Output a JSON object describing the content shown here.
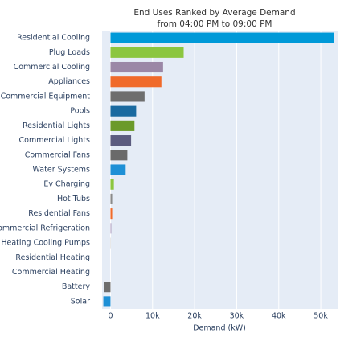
{
  "chart_data": {
    "type": "barh",
    "title": "End Uses Ranked by Average Demand",
    "subtitle": "from 04:00 PM to 09:00 PM",
    "x_label": "Demand (kW)",
    "categories": [
      "Residential Cooling",
      "Plug Loads",
      "Commercial Cooling",
      "Appliances",
      "Commercial Equipment",
      "Pools",
      "Residential Lights",
      "Commercial Lights",
      "Commercial Fans",
      "Water Systems",
      "Ev Charging",
      "Hot Tubs",
      "Residential Fans",
      "Commercial Refrigeration",
      "Heating Cooling Pumps",
      "Residential Heating",
      "Commercial Heating",
      "Battery",
      "Solar"
    ],
    "values": [
      53200,
      17400,
      12500,
      12100,
      8100,
      6100,
      5700,
      4900,
      4000,
      3600,
      800,
      400,
      400,
      200,
      50,
      0,
      0,
      -1500,
      -1700
    ],
    "colors": [
      "#0099d8",
      "#8cc63f",
      "#9b87a6",
      "#f06a2a",
      "#6e6e6e",
      "#1a6aa0",
      "#6b9a2a",
      "#5c5c7f",
      "#6a6a6a",
      "#1e90d6",
      "#8cc63f",
      "#8a8a8a",
      "#f06a2a",
      "#b0a0c0",
      "#aaaaaa",
      "#cccccc",
      "#cccccc",
      "#6e6e6e",
      "#1e90d6"
    ],
    "xlim": [
      -2000,
      54000
    ],
    "xticks": [
      {
        "value": 0,
        "label": "0"
      },
      {
        "value": 10000,
        "label": "10k"
      },
      {
        "value": 20000,
        "label": "20k"
      },
      {
        "value": 30000,
        "label": "30k"
      },
      {
        "value": 40000,
        "label": "40k"
      },
      {
        "value": 50000,
        "label": "50k"
      }
    ],
    "grid": true
  }
}
